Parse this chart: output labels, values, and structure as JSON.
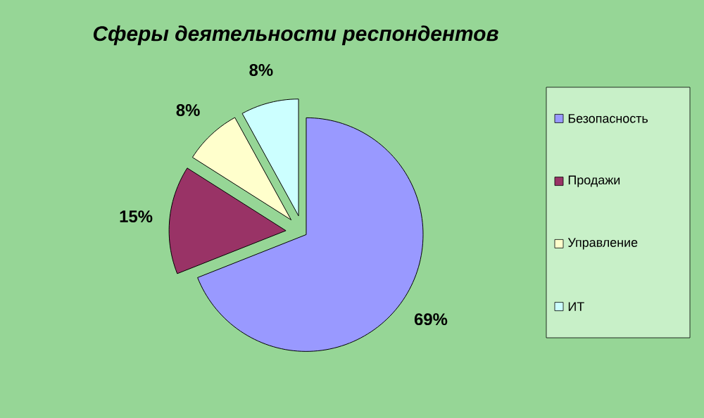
{
  "chart_data": {
    "type": "pie",
    "title": "Сферы деятельности респондентов",
    "categories": [
      "Безопасность",
      "Продажи",
      "Управление",
      "ИТ"
    ],
    "values": [
      69,
      15,
      8,
      8
    ],
    "colors": [
      "#9999ff",
      "#993366",
      "#ffffcc",
      "#ccffff"
    ],
    "value_labels": [
      "69%",
      "15%",
      "8%",
      "8%"
    ],
    "legend": "right"
  }
}
